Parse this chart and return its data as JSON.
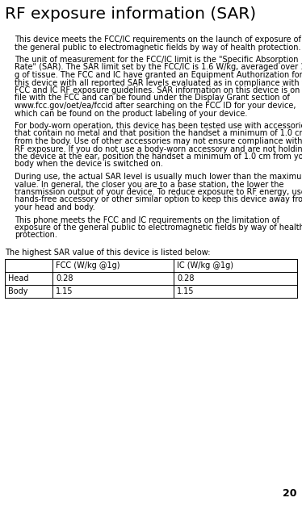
{
  "title": "RFexposure information (SAR)",
  "title_text": "RF exposure information (SAR)",
  "title_str": "RF exposure information (SAR)",
  "title_fontsize": 14.5,
  "body_fontsize": 6.5,
  "small_fontsize": 6.5,
  "paragraphs": [
    "    This device meets the FCC/lic requirements on the launch of exposure of\n    the general public to electromagnetic fields by way of health protection.",
    "    The unit of measurement for the FCC/IC limit is the \"Specific Absorption\n    Rate\" (SAR). The SAR limit set by the FCC/IC is 1.6 W/kg, averaged over 1\n    g of tissue. The FCC and IC have granted an Equipment Authorization for\n    this device with all reported SAR levels evaluated as in compliance with the\n    FCC and IC RF exposure guidelines. SAR information on this device is on\n    file with the FCC and can be found under the LDisplay Grant section of\n    www.fcc.gov/oet/ea/fccid after searching on the FCC ID for your device,\n    which can be found on the product labeling of your device.",
    "    For body-worn operation, this device has been tested use with accessories\n    that contain no metal and that position the handset a minimum of 1.0 cm\n    from the body. Use of other accessories may not ensure compliance with\n    RF exposure. If you do not use a body-worn operation and are not holding\n    the device at the ear, position the handset a minimum of 1.0 cm from your\n    body when the device is switched on.",
    "    During use, the actual SAR level is usually much lower than the maximum\n    value. In general, the closer you are to a base station, the lower the\n    transmission output of your device. To reduce exposure to RF energy, use a\n    hands-free accessory or other similar option to keep this device away from\n    your head and body.",
    "    This phone meets the FCC and IC requirements on the limitation of\n    exposure of the general public to electromagnetic fields by way of health\n    protection."
  ],
  "table_intro": "The highest SAR value of this device is listed below:",
  "table_headers": [
    "",
    "FCC (W/kg @1g)",
    "IC (W/kg @1g)"
  ],
  "table_rows": [
    [
      "Head",
      "0.28",
      "0.28"
    ],
    [
      "Body",
      "1.15",
      "1.15"
    ]
  ],
  "page_number": "20",
  "bg_color": "#ffffff",
  "text_color": "#000000"
}
